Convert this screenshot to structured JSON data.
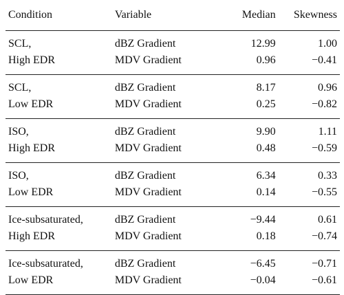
{
  "table": {
    "headers": {
      "condition": "Condition",
      "variable": "Variable",
      "median": "Median",
      "skewness": "Skewness"
    },
    "groups": [
      {
        "condition_line1": "SCL,",
        "condition_line2": "High EDR",
        "rows": [
          {
            "variable": "dBZ Gradient",
            "median": "12.99",
            "skewness": "1.00"
          },
          {
            "variable": "MDV Gradient",
            "median": "0.96",
            "skewness": "−0.41"
          }
        ]
      },
      {
        "condition_line1": "SCL,",
        "condition_line2": "Low EDR",
        "rows": [
          {
            "variable": "dBZ Gradient",
            "median": "8.17",
            "skewness": "0.96"
          },
          {
            "variable": "MDV Gradient",
            "median": "0.25",
            "skewness": "−0.82"
          }
        ]
      },
      {
        "condition_line1": "ISO,",
        "condition_line2": "High EDR",
        "rows": [
          {
            "variable": "dBZ Gradient",
            "median": "9.90",
            "skewness": "1.11"
          },
          {
            "variable": "MDV Gradient",
            "median": "0.48",
            "skewness": "−0.59"
          }
        ]
      },
      {
        "condition_line1": "ISO,",
        "condition_line2": "Low EDR",
        "rows": [
          {
            "variable": "dBZ Gradient",
            "median": "6.34",
            "skewness": "0.33"
          },
          {
            "variable": "MDV Gradient",
            "median": "0.14",
            "skewness": "−0.55"
          }
        ]
      },
      {
        "condition_line1": "Ice-subsaturated,",
        "condition_line2": "High EDR",
        "rows": [
          {
            "variable": "dBZ Gradient",
            "median": "−9.44",
            "skewness": "0.61"
          },
          {
            "variable": "MDV Gradient",
            "median": "0.18",
            "skewness": "−0.74"
          }
        ]
      },
      {
        "condition_line1": "Ice-subsaturated,",
        "condition_line2": "Low EDR",
        "rows": [
          {
            "variable": "dBZ Gradient",
            "median": "−6.45",
            "skewness": "−0.71"
          },
          {
            "variable": "MDV Gradient",
            "median": "−0.04",
            "skewness": "−0.61"
          }
        ]
      }
    ]
  }
}
